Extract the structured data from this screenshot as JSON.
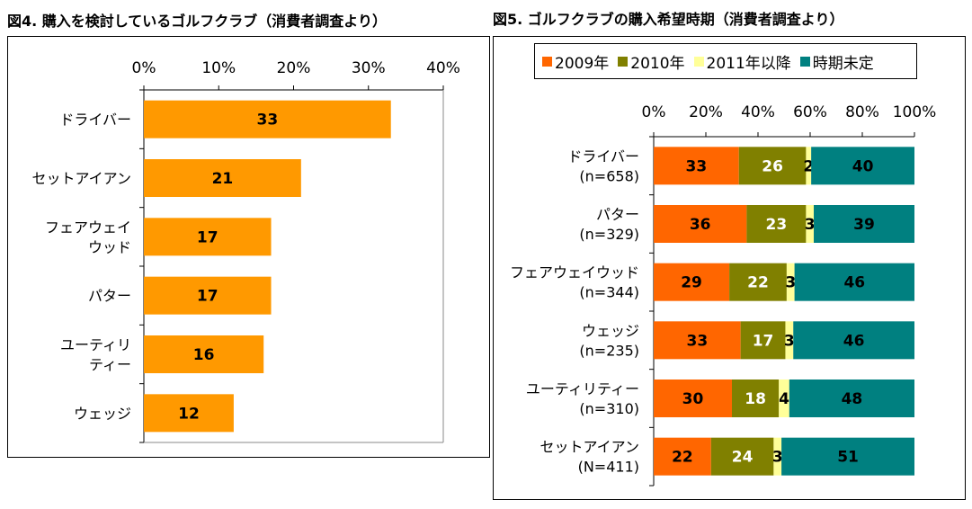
{
  "chart_data": [
    {
      "type": "bar",
      "orientation": "horizontal",
      "title": "図4. 購入を検討しているゴルフクラブ（消費者調査より）",
      "categories": [
        [
          "ドライバー"
        ],
        [
          "セットアイアン"
        ],
        [
          "フェアウェイ",
          "ウッド"
        ],
        [
          "パター"
        ],
        [
          "ユーティリ",
          "ティー"
        ],
        [
          "ウェッジ"
        ]
      ],
      "values": [
        33,
        21,
        17,
        17,
        16,
        12
      ],
      "xlim": [
        0,
        40
      ],
      "ticks": [
        "0%",
        "10%",
        "20%",
        "30%",
        "40%"
      ],
      "tick_values": [
        0,
        10,
        20,
        30,
        40
      ],
      "color": "#FF9900",
      "grid": false
    },
    {
      "type": "bar",
      "orientation": "horizontal",
      "stacked": "percent",
      "title": "図5. ゴルフクラブの購入希望時期（消費者調査より）",
      "categories": [
        [
          "ドライバー",
          "(n=658)"
        ],
        [
          "パター",
          "(n=329)"
        ],
        [
          "フェアウェイウッド",
          "(n=344)"
        ],
        [
          "ウェッジ",
          "(n=235)"
        ],
        [
          "ユーティリティー",
          "(n=310)"
        ],
        [
          "セットアイアン",
          "(N=411)"
        ]
      ],
      "series": [
        {
          "name": "2009年",
          "values": [
            33,
            36,
            29,
            33,
            30,
            22
          ],
          "color": "#FF6600",
          "label_color": "#000000"
        },
        {
          "name": "2010年",
          "values": [
            26,
            23,
            22,
            17,
            18,
            24
          ],
          "color": "#808000",
          "label_color": "#FFFFFF"
        },
        {
          "name": "2011年以降",
          "values": [
            2,
            3,
            3,
            3,
            4,
            3
          ],
          "color": "#FFFF99",
          "label_color": "#000000"
        },
        {
          "name": "時期未定",
          "values": [
            40,
            39,
            46,
            46,
            48,
            51
          ],
          "color": "#008080",
          "label_color": "#000000"
        }
      ],
      "xlim": [
        0,
        100
      ],
      "ticks": [
        "0%",
        "20%",
        "40%",
        "60%",
        "80%",
        "100%"
      ],
      "tick_values": [
        0,
        20,
        40,
        60,
        80,
        100
      ],
      "legend": "top",
      "grid": false
    }
  ]
}
